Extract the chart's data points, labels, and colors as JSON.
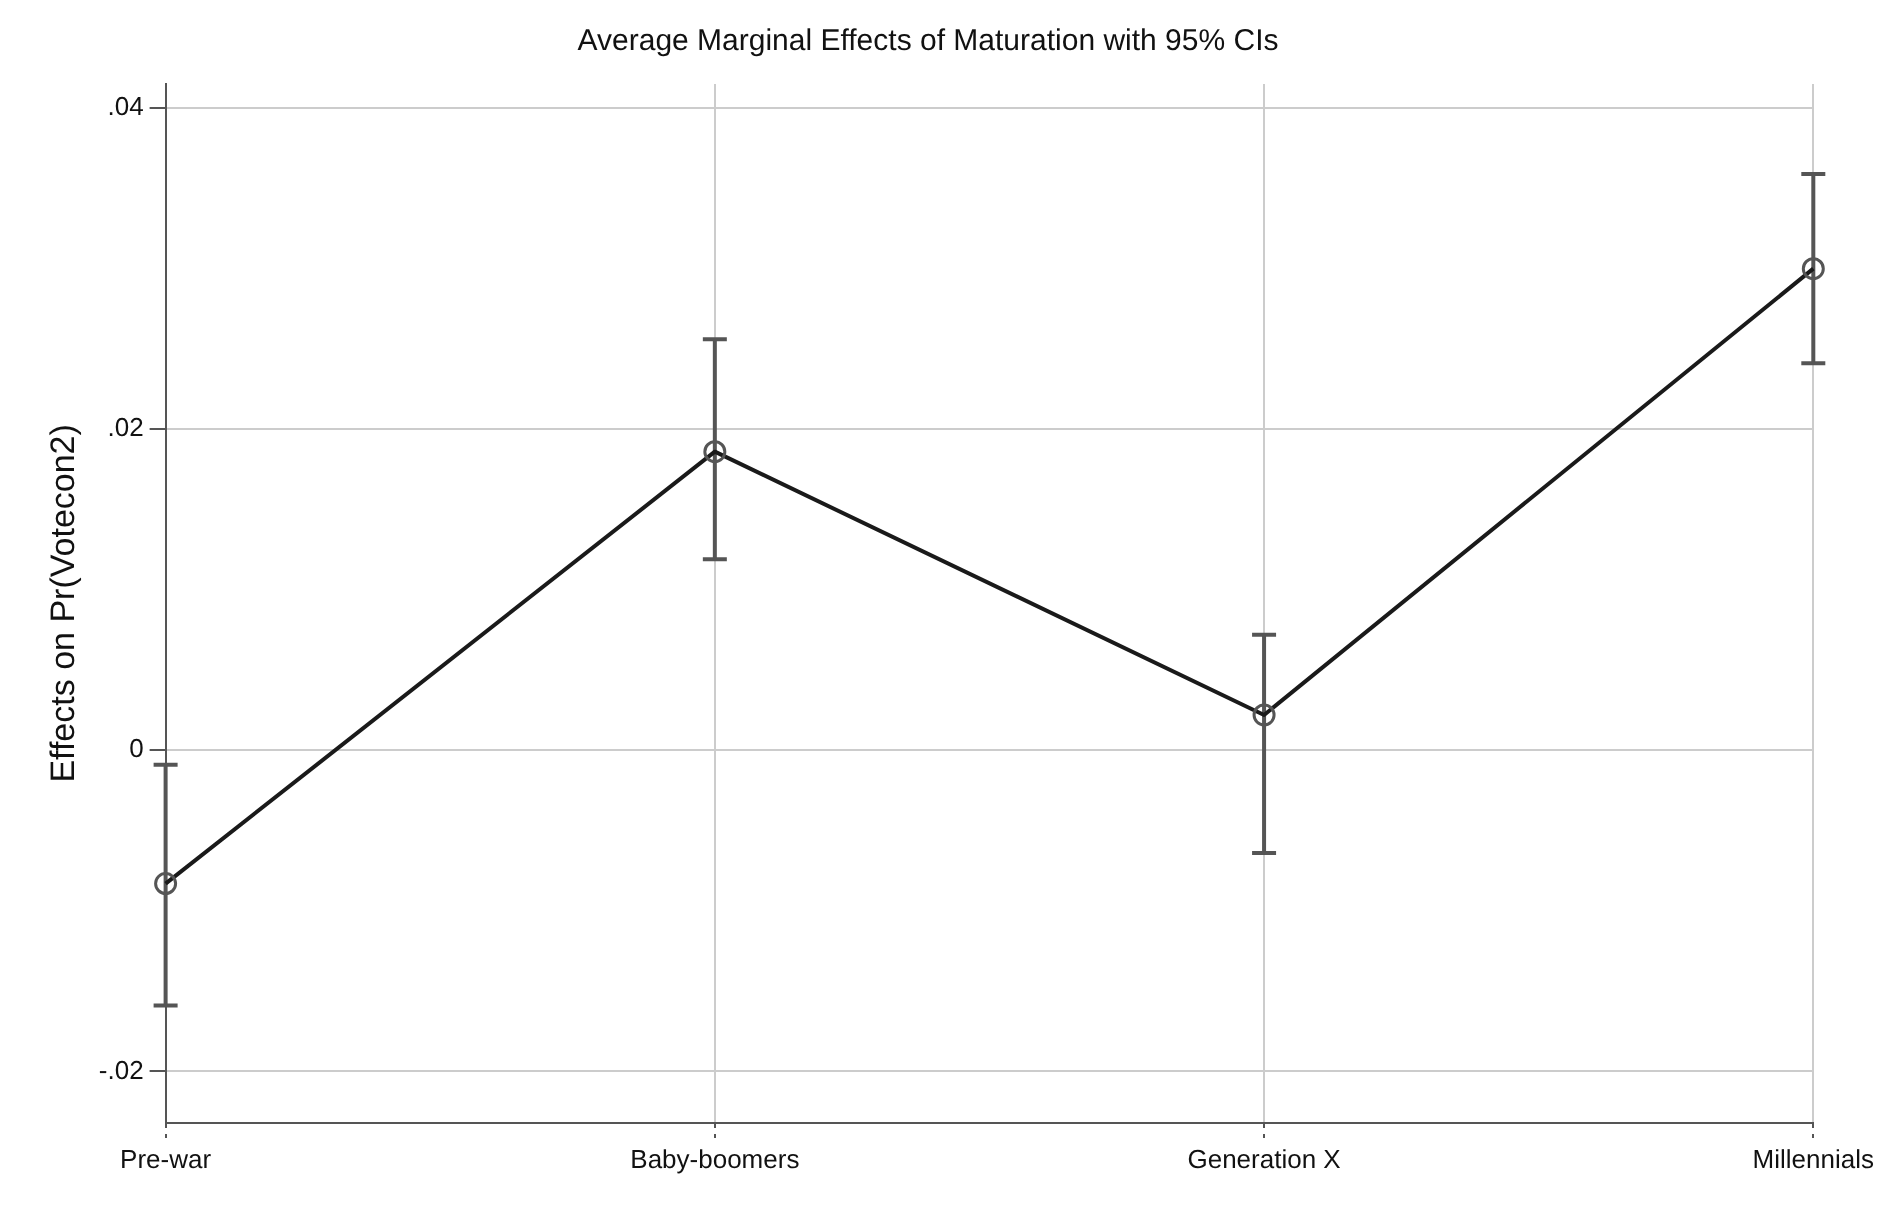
{
  "chart_data": {
    "type": "line",
    "title": "Average Marginal Effects of Maturation with 95% CIs",
    "ylabel": "Effects on Pr(Votecon2)",
    "categories": [
      "Pre-war",
      "Baby-boomers",
      "Generation X",
      "Millennials"
    ],
    "series": [
      {
        "color": "#1a1a1a",
        "values": [
          -0.0083,
          0.0186,
          0.0022,
          0.03
        ],
        "errors": [
          [
            -0.0159,
            -0.0009
          ],
          [
            0.0119,
            0.0256
          ],
          [
            -0.0064,
            0.0072
          ],
          [
            0.0241,
            0.0359
          ]
        ]
      }
    ],
    "ylim": [
      -0.0232,
      0.0415
    ],
    "yticks": [
      {
        "value": -0.02,
        "label": "-.02"
      },
      {
        "value": 0,
        "label": "0"
      },
      {
        "value": 0.02,
        "label": ".02"
      },
      {
        "value": 0.04,
        "label": ".04"
      }
    ],
    "grid": true,
    "marker": "circle",
    "line_style": "solid",
    "legend": false
  }
}
